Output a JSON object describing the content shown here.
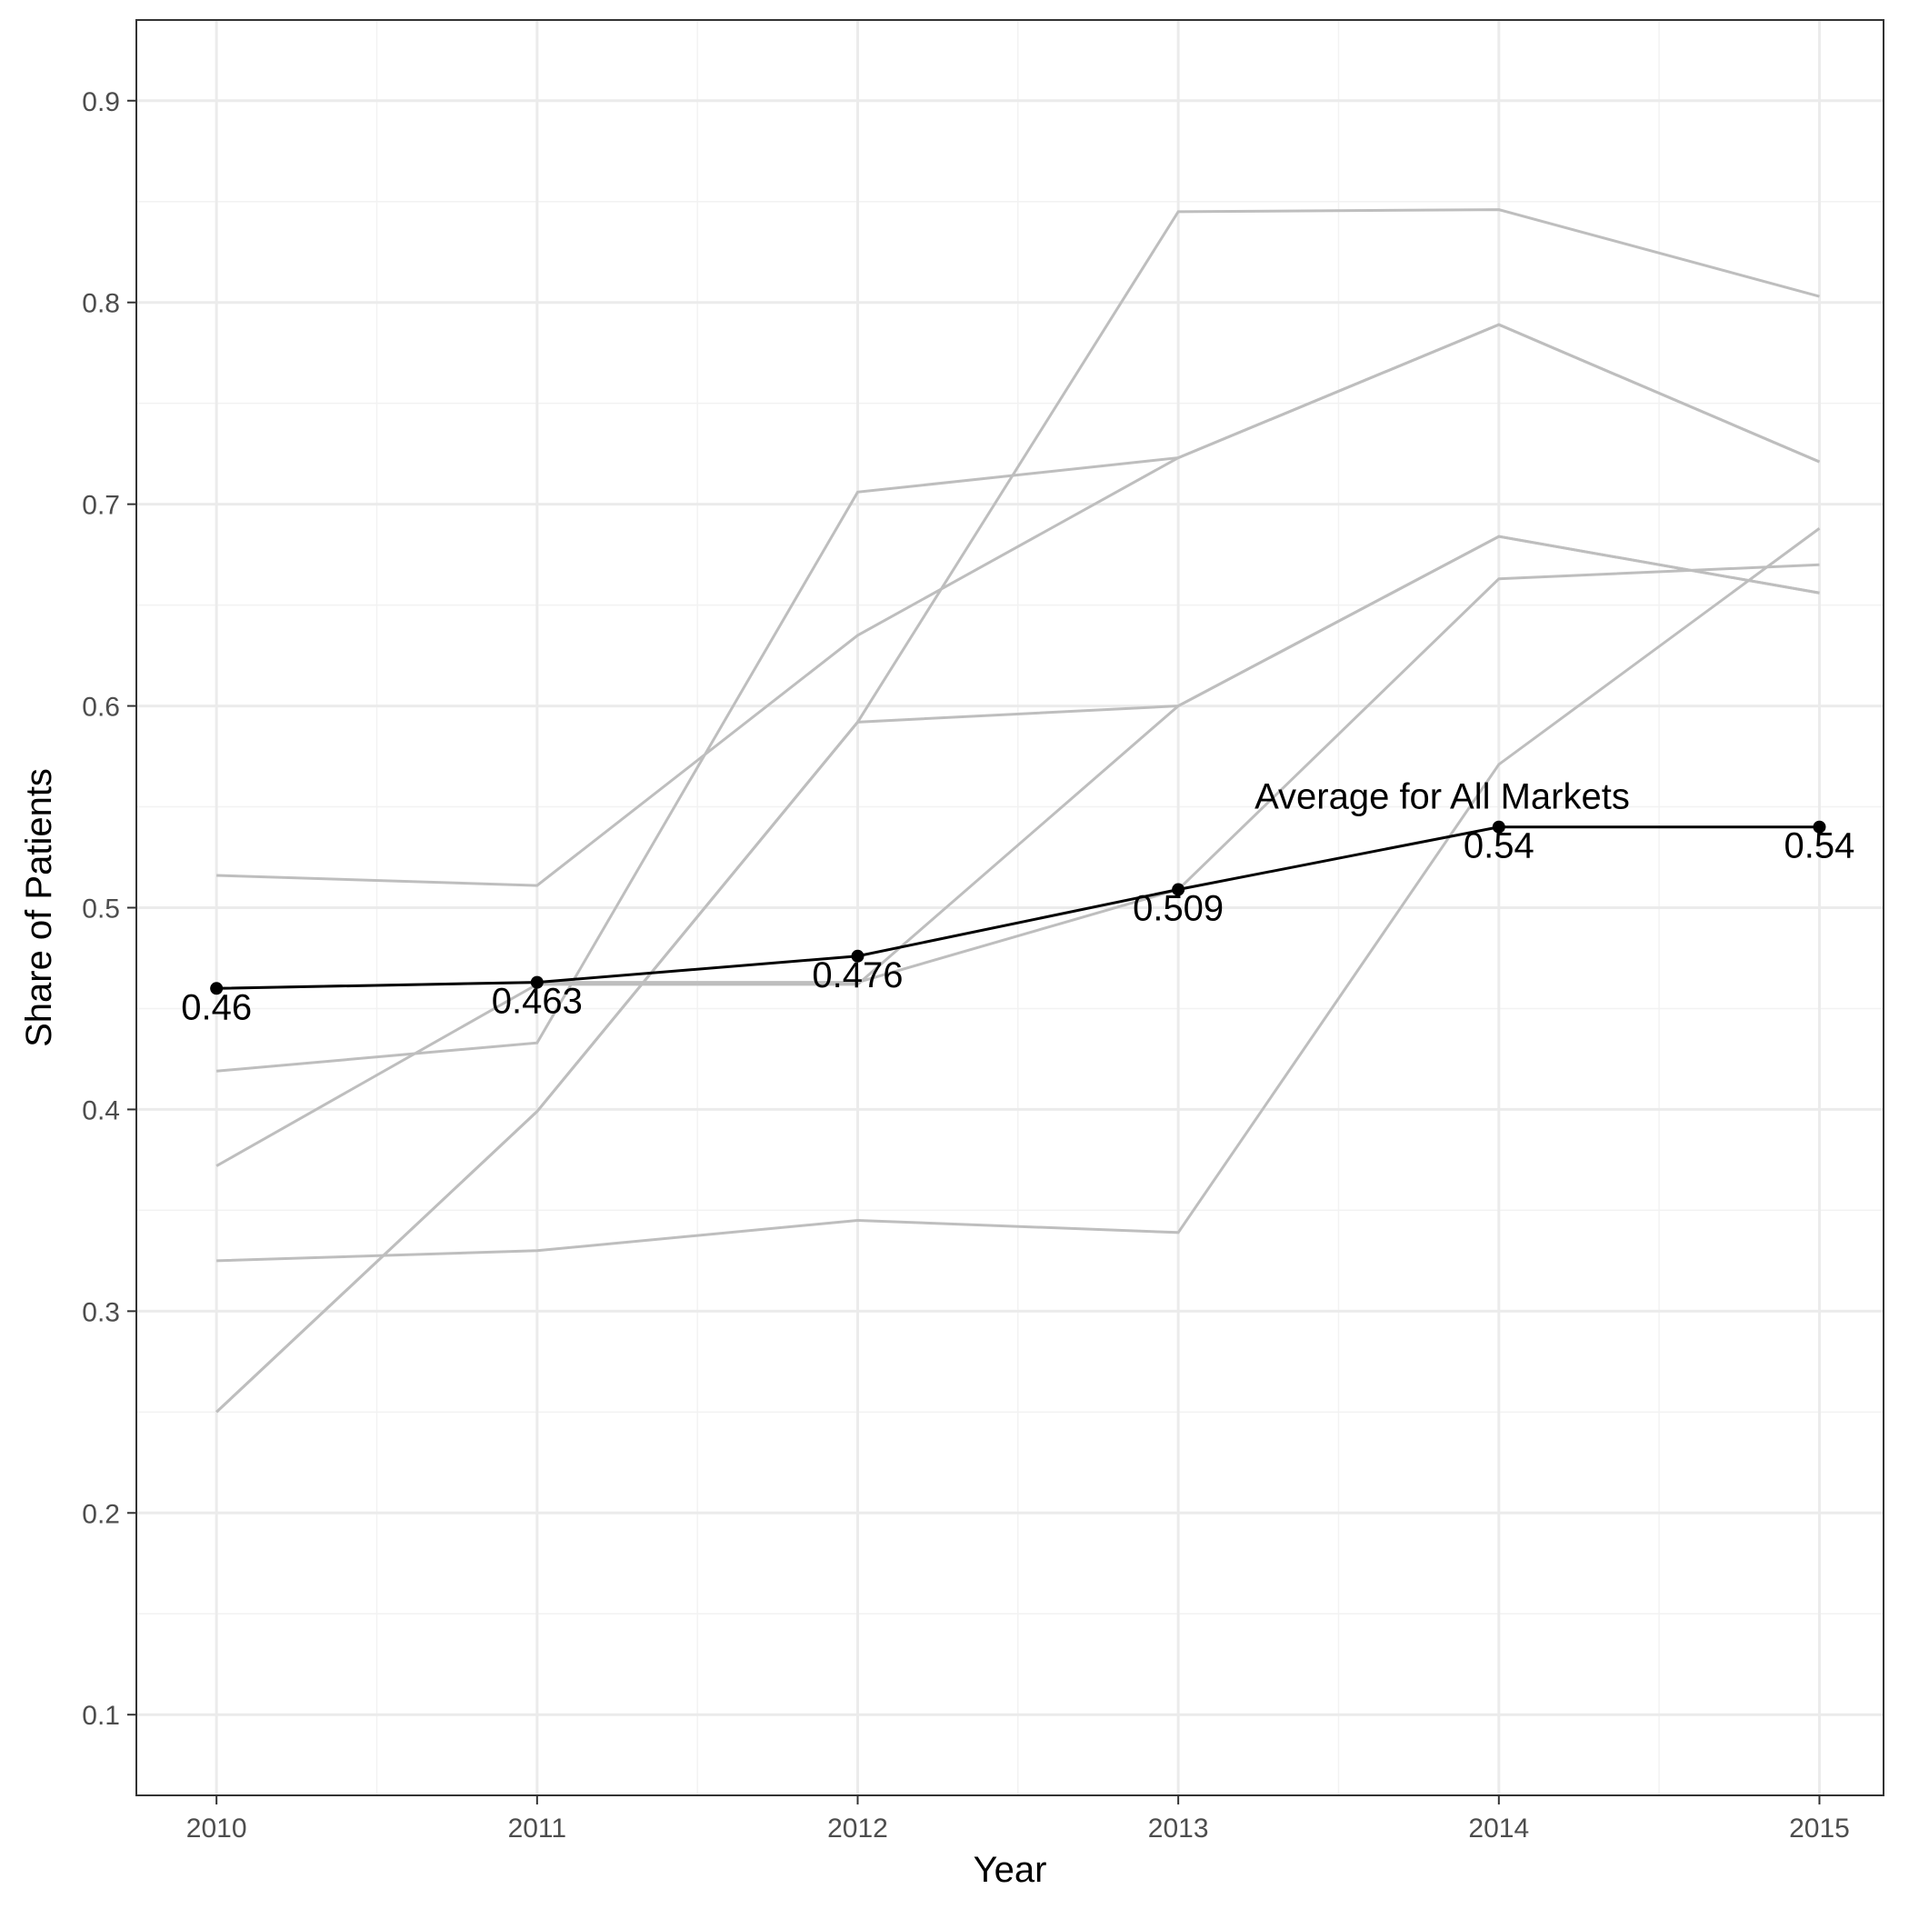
{
  "chart_data": {
    "type": "line",
    "xlabel": "Year",
    "ylabel": "Share of Patients",
    "x": [
      2010,
      2011,
      2012,
      2013,
      2014,
      2015
    ],
    "xlim": [
      2009.75,
      2015.2
    ],
    "ylim": [
      0.06,
      0.94
    ],
    "y_ticks": [
      0.1,
      0.2,
      0.3,
      0.4,
      0.5,
      0.6,
      0.7,
      0.8,
      0.9
    ],
    "y_tick_labels": [
      "0.1",
      "0.2",
      "0.3",
      "0.4",
      "0.5",
      "0.6",
      "0.7",
      "0.8",
      "0.9"
    ],
    "x_tick_labels": [
      "2010",
      "2011",
      "2012",
      "2013",
      "2014",
      "2015"
    ],
    "grid": true,
    "markets": [
      [
        0.516,
        0.511,
        0.635,
        0.723,
        0.789,
        0.721
      ],
      [
        0.419,
        0.433,
        0.706,
        0.723,
        0.789,
        0.721
      ],
      [
        0.372,
        0.462,
        0.462,
        0.6,
        0.684,
        0.656
      ],
      [
        0.25,
        0.399,
        0.592,
        0.6,
        0.684,
        0.656
      ],
      [
        0.325,
        0.33,
        0.345,
        0.339,
        0.571,
        0.688
      ],
      [
        0.25,
        0.399,
        0.592,
        0.845,
        0.846,
        0.803
      ],
      [
        0.46,
        0.463,
        0.463,
        0.509,
        0.663,
        0.67
      ]
    ],
    "average": {
      "name": "Average for All Markets",
      "values": [
        0.46,
        0.463,
        0.476,
        0.509,
        0.54,
        0.54
      ],
      "labels": [
        "0.46",
        "0.463",
        "0.476",
        "0.509",
        "0.54",
        "0.54"
      ]
    },
    "colors": {
      "markets": "#bebebe",
      "average": "#000000",
      "grid_major": "#ebebeb",
      "grid_minor": "#f2f2f2",
      "border": "#333333"
    }
  }
}
